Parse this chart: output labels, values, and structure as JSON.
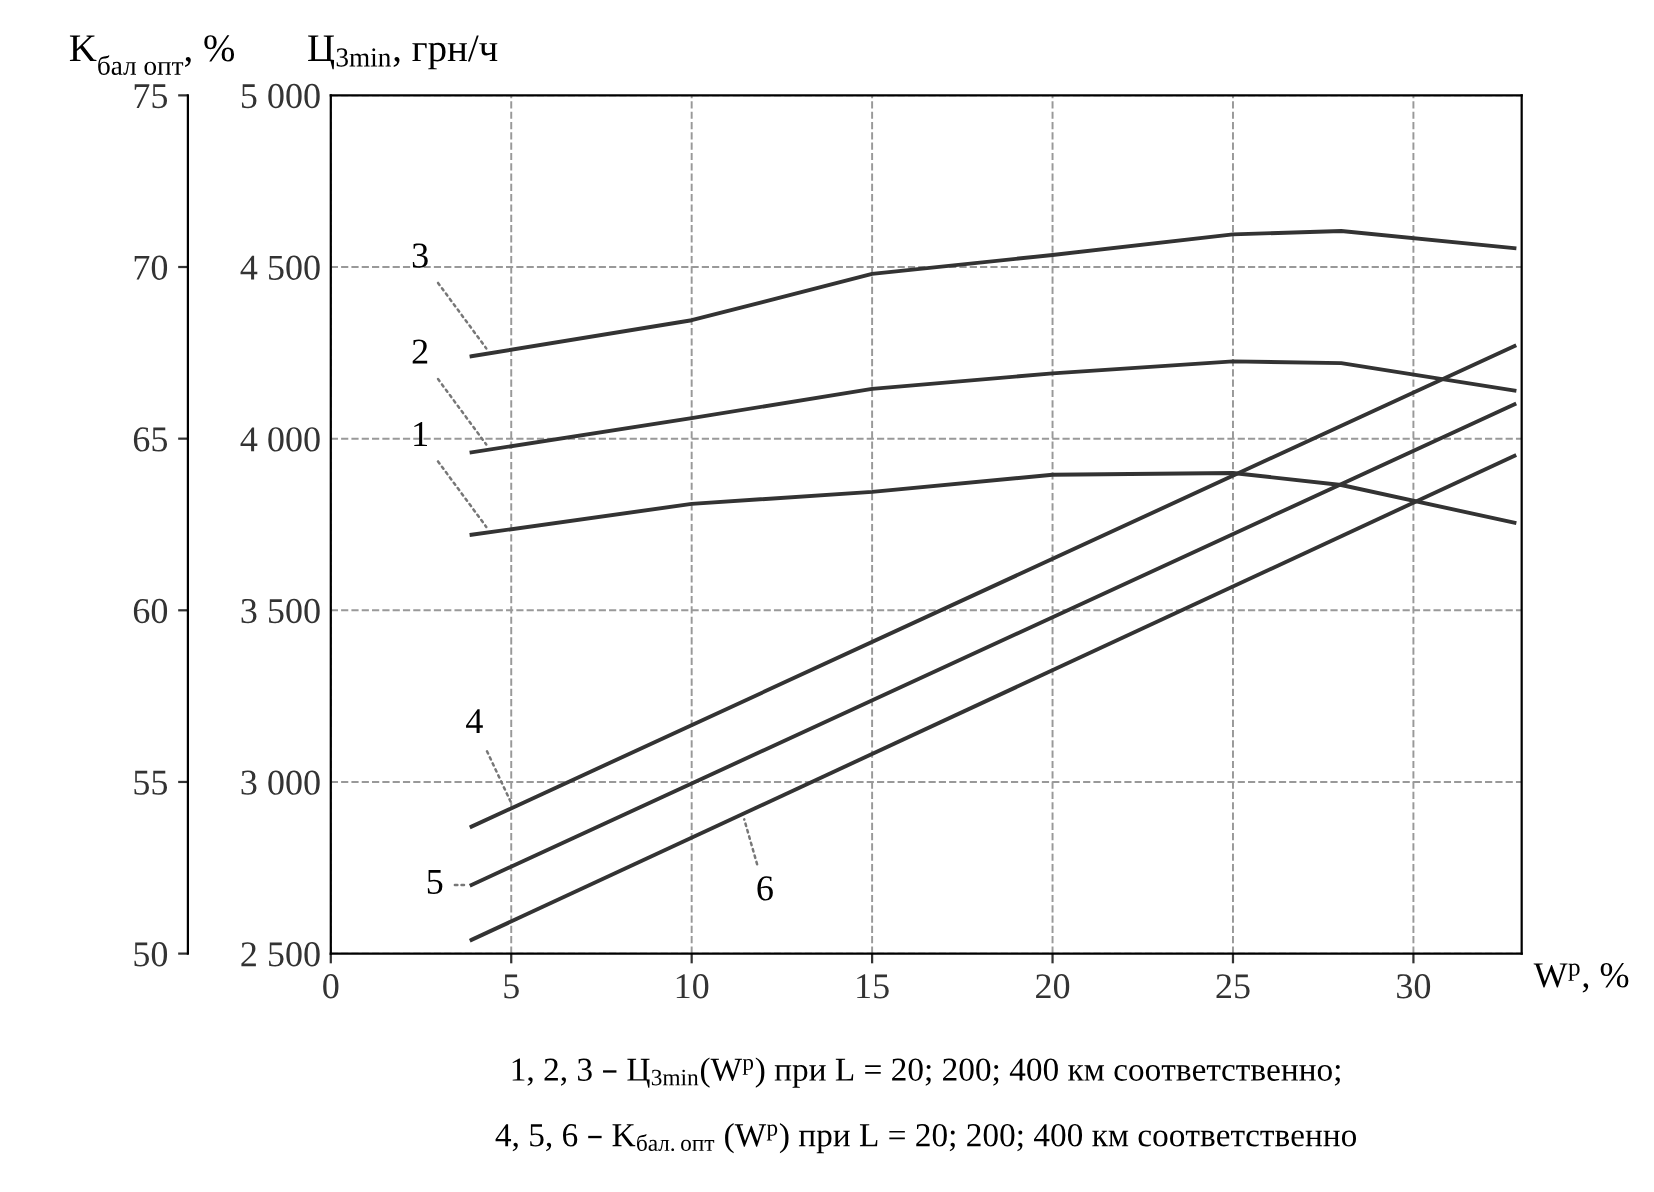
{
  "chart_data": {
    "type": "line",
    "xlabel": "W$^{р}$, %",
    "ylabel": "Ц$_{3min}$, грн/ч",
    "y2label": "K$_{бал опт}$, %",
    "xlim": [
      0,
      33
    ],
    "xticks": [
      0,
      5,
      10,
      15,
      20,
      25,
      30
    ],
    "ylim": [
      2500,
      5000
    ],
    "yticks": [
      {
        "value": 2500,
        "label": "2 500"
      },
      {
        "value": 3000,
        "label": "3 000"
      },
      {
        "value": 3500,
        "label": "3 500"
      },
      {
        "value": 4000,
        "label": "4 000"
      },
      {
        "value": 4500,
        "label": "4 500"
      },
      {
        "value": 5000,
        "label": "5 000"
      }
    ],
    "y2lim": [
      50,
      75
    ],
    "y2ticks": [
      50,
      55,
      60,
      65,
      70,
      75
    ],
    "grid": true,
    "legend": false,
    "marker": "none",
    "line_style": "solid",
    "series": [
      {
        "name": "1",
        "color": "#333333",
        "x": [
          3.9,
          10,
          15,
          20,
          25,
          28,
          32.8
        ],
        "values": [
          3720,
          3810,
          3845,
          3895,
          3900,
          3865,
          3755
        ]
      },
      {
        "name": "2",
        "color": "#333333",
        "x": [
          3.9,
          10,
          15,
          20,
          25,
          28,
          32.8
        ],
        "values": [
          3960,
          4060,
          4145,
          4190,
          4225,
          4220,
          4140
        ]
      },
      {
        "name": "3",
        "color": "#333333",
        "x": [
          3.9,
          10,
          15,
          20,
          25,
          28,
          32.8
        ],
        "values": [
          4240,
          4345,
          4480,
          4535,
          4595,
          4605,
          4555
        ]
      },
      {
        "name": "4",
        "color": "#333333",
        "axis": "y2",
        "x": [
          3.9,
          32.8
        ],
        "values": [
          53.7,
          67.7
        ]
      },
      {
        "name": "5",
        "color": "#333333",
        "axis": "y2",
        "x": [
          3.9,
          32.8
        ],
        "values": [
          52.0,
          66.0
        ]
      },
      {
        "name": "6",
        "color": "#333333",
        "axis": "y2",
        "x": [
          3.9,
          32.8
        ],
        "values": [
          50.4,
          64.5
        ]
      }
    ],
    "annotations": [
      "1, 2, 3 – Ц$_{3min}$(W$^{р}$) при L = 20; 200; 400 км соответственно;",
      "4, 5, 6 – K$_{бал.опт}$ (W$^{р}$) при L = 20; 200; 400 км соответственно"
    ]
  }
}
